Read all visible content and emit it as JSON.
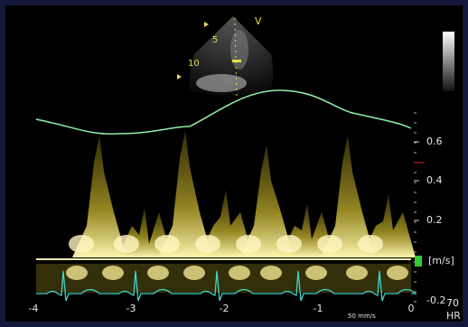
{
  "sector_image": {
    "top_label": "V",
    "depth_labels": [
      "5",
      "10"
    ]
  },
  "doppler": {
    "velocity_labels": [
      "0.6",
      "0.4",
      "0.2",
      "[m/s]",
      "-0.2"
    ],
    "time_labels": [
      "-4",
      "-3",
      "-2",
      "-1",
      "0"
    ],
    "sweep_speed": "50 mm/s",
    "heart_rate": {
      "value": "70",
      "label": "HR"
    }
  }
}
